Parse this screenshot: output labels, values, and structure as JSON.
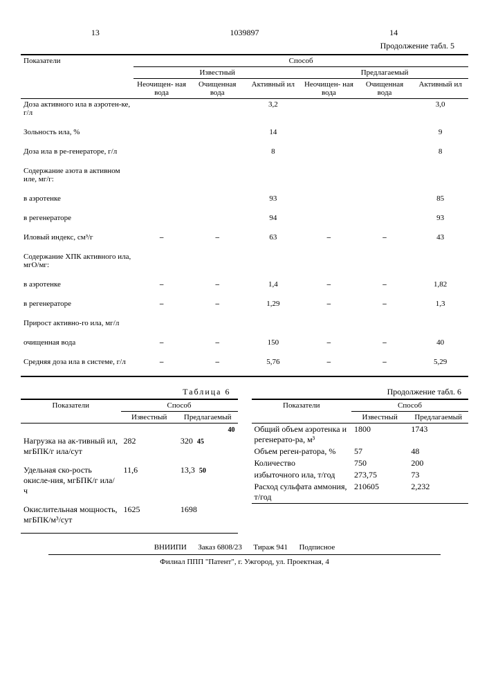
{
  "page_left": "13",
  "doc_id": "1039897",
  "page_right": "14",
  "cont5": "Продолжение табл. 5",
  "t5": {
    "h_param": "Показатели",
    "h_method": "Способ",
    "h_known": "Известный",
    "h_proposed": "Предлагаемый",
    "h_raw": "Неочищен-\nная вода",
    "h_clean": "Очищенная\nвода",
    "h_sludge": "Активный\nил",
    "rows": [
      {
        "label": "Доза активного ила в аэротен-ке, г/л",
        "v": [
          "",
          "",
          "3,2",
          "",
          "",
          "3,0"
        ]
      },
      {
        "label": "Зольность ила, %",
        "v": [
          "",
          "",
          "14",
          "",
          "",
          "9"
        ]
      },
      {
        "label": "Доза ила в ре-генераторе, г/л",
        "v": [
          "",
          "",
          "8",
          "",
          "",
          "8"
        ]
      },
      {
        "label": "Содержание азота в активном иле, мг/г:",
        "v": [
          "",
          "",
          "",
          "",
          "",
          ""
        ]
      },
      {
        "label": "  в аэротенке",
        "v": [
          "",
          "",
          "93",
          "",
          "",
          "85"
        ]
      },
      {
        "label": "  в регенераторе",
        "v": [
          "",
          "",
          "94",
          "",
          "",
          "93"
        ]
      },
      {
        "label": "Иловый индекс, см³/г",
        "v": [
          "–",
          "–",
          "63",
          "–",
          "–",
          "43"
        ]
      },
      {
        "label": "Содержание ХПК активного ила, мгО/мг:",
        "v": [
          "",
          "",
          "",
          "",
          "",
          ""
        ]
      },
      {
        "label": "  в аэротенке",
        "v": [
          "–",
          "–",
          "1,4",
          "–",
          "–",
          "1,82"
        ]
      },
      {
        "label": "  в регенераторе",
        "v": [
          "–",
          "–",
          "1,29",
          "–",
          "–",
          "1,3"
        ]
      },
      {
        "label": "Прирост активно-го ила, мг/л",
        "v": [
          "",
          "",
          "",
          "",
          "",
          ""
        ]
      },
      {
        "label": "  очищенная вода",
        "v": [
          "–",
          "–",
          "150",
          "–",
          "–",
          "40"
        ]
      },
      {
        "label": "Средняя доза ила в системе, г/л",
        "v": [
          "–",
          "–",
          "5,76",
          "–",
          "–",
          "5,29"
        ]
      }
    ]
  },
  "t6_label": "Таблица 6",
  "t6c_label": "Продолжение табл. 6",
  "t6": {
    "h_param": "Показатели",
    "h_method": "Способ",
    "h_known": "Известный",
    "h_proposed": "Предлагаемый",
    "rows": [
      {
        "label": "Нагрузка на ак-тивный ил, мгБПК/г ила/сут",
        "k": "282",
        "p": "320",
        "m": "45"
      },
      {
        "label": "Удельная ско-рость окисле-ния, мгБПК/г ила/ч",
        "k": "11,6",
        "p": "13,3",
        "m": "50"
      },
      {
        "label": "Окислительная мощность, мгБПК/м³/сут",
        "k": "1625",
        "p": "1698",
        "m": ""
      }
    ]
  },
  "t6c": {
    "rows": [
      {
        "label": "Общий объем аэротенка и регенерато-ра, м³",
        "k": "1800",
        "p": "1743"
      },
      {
        "label": "Объем реген-ратора, %",
        "k": "57",
        "p": "48"
      },
      {
        "label": "Количество",
        "k": "750",
        "p": "200"
      },
      {
        "label": "избыточного ила, т/год",
        "k": "273,75",
        "p": "73"
      },
      {
        "label": "Расход сульфата аммония, т/год",
        "k": "210605",
        "p": "2,232"
      }
    ]
  },
  "footer": {
    "line1a": "ВНИИПИ",
    "line1b": "Заказ 6808/23",
    "line1c": "Тираж 941",
    "line1d": "Подписное",
    "line2": "Филиал ППП \"Патент\", г. Ужгород, ул. Проектная, 4"
  },
  "marker40": "40"
}
